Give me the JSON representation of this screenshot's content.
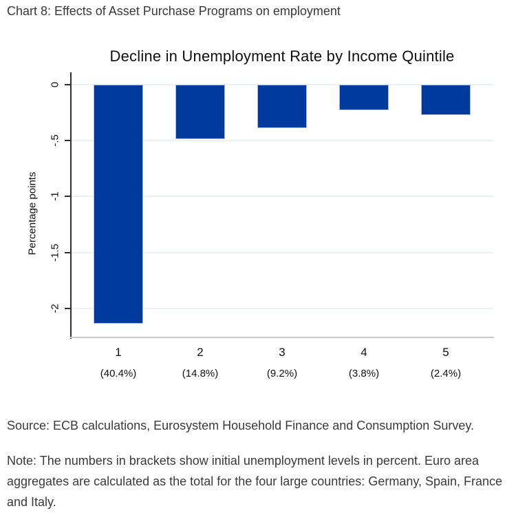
{
  "page": {
    "header": "Chart 8: Effects of Asset Purchase Programs on employment",
    "source": "Source: ECB calculations, Eurosystem Household Finance and Consumption Survey.",
    "note": "Note: The numbers in brackets show initial unemployment levels in percent. Euro area aggregates are calculated as the total for the four large countries: Germany, Spain, France and Italy."
  },
  "chart_data": {
    "type": "bar",
    "title": "Decline in Unemployment Rate by Income Quintile",
    "xlabel": "",
    "ylabel": "Percentage points",
    "categories": [
      "1",
      "2",
      "3",
      "4",
      "5"
    ],
    "category_sublabels": [
      "(40.4%)",
      "(14.8%)",
      "(9.2%)",
      "(3.8%)",
      "(2.4%)"
    ],
    "values": [
      -2.14,
      -0.49,
      -0.39,
      -0.23,
      -0.27
    ],
    "yticks": [
      0,
      -0.5,
      -1,
      -1.5,
      -2
    ],
    "ytick_labels": [
      "0",
      "-.5",
      "-1",
      "-1.5",
      "-2"
    ],
    "ylim": [
      -2.26,
      0.11
    ],
    "grid": true,
    "legend": false,
    "colors": {
      "bar_fill": "#003a9c",
      "bar_border": "#a9b6da",
      "gridline": "#eaf2f3",
      "axis_left": "#2f2f2f",
      "axis_bottom": "#c9c9c9",
      "tick": "#2f2f2f"
    }
  }
}
